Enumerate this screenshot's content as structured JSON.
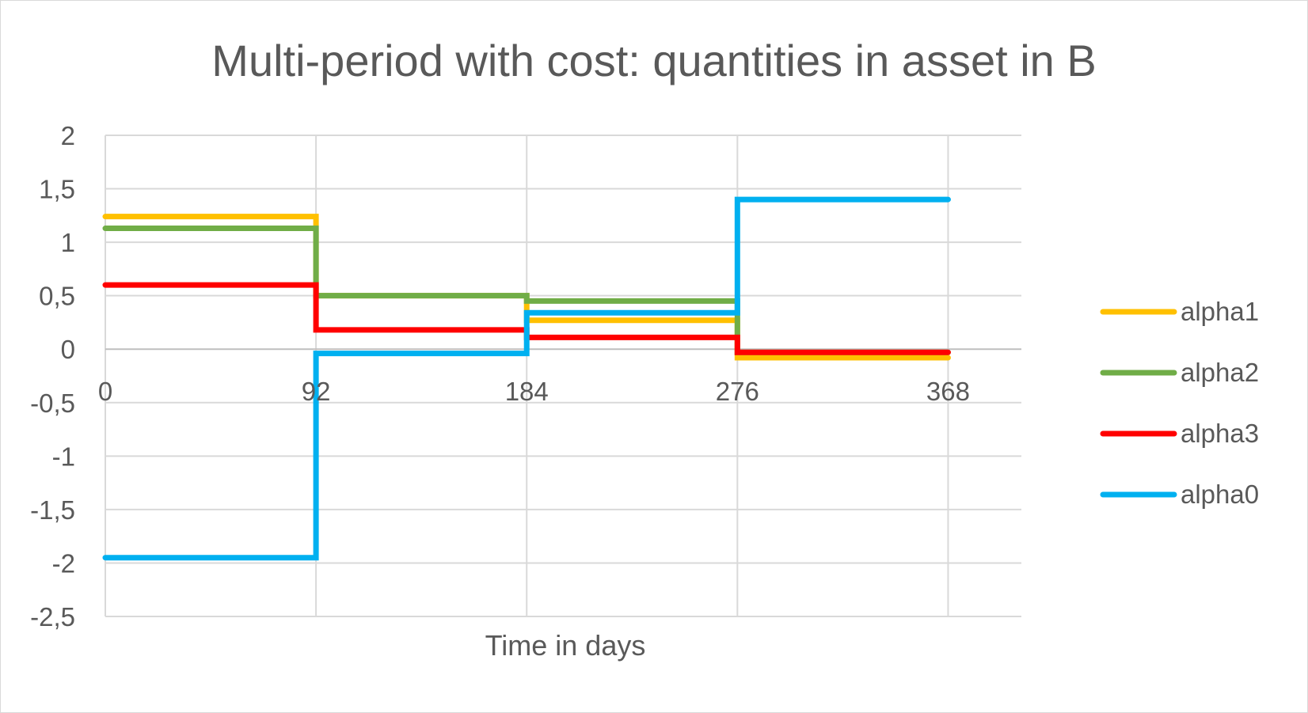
{
  "chart_data": {
    "type": "line",
    "step": "post",
    "title": "Multi-period with cost: quantities in asset in B",
    "xlabel": "Time in days",
    "ylabel": "",
    "x": [
      0,
      92,
      184,
      276,
      368
    ],
    "xlim": [
      0,
      400
    ],
    "ylim": [
      -2.5,
      2
    ],
    "x_ticks": [
      0,
      92,
      184,
      276,
      368
    ],
    "x_tick_labels": [
      "0",
      "92",
      "184",
      "276",
      "368"
    ],
    "y_ticks": [
      -2.5,
      -2,
      -1.5,
      -1,
      -0.5,
      0,
      0.5,
      1,
      1.5,
      2
    ],
    "y_tick_labels": [
      "-2,5",
      "-2",
      "-1,5",
      "-1",
      "-0,5",
      "0",
      "0,5",
      "1",
      "1,5",
      "2"
    ],
    "grid": true,
    "legend_position": "right",
    "series": [
      {
        "name": "alpha1",
        "color": "#FFC000",
        "values": [
          1.24,
          0.5,
          0.27,
          -0.08,
          -0.08
        ]
      },
      {
        "name": "alpha2",
        "color": "#70AD47",
        "values": [
          1.13,
          0.5,
          0.45,
          -0.03,
          -0.03
        ]
      },
      {
        "name": "alpha3",
        "color": "#FF0000",
        "values": [
          0.6,
          0.18,
          0.11,
          -0.03,
          -0.03
        ]
      },
      {
        "name": "alpha0",
        "color": "#00B0F0",
        "values": [
          -1.95,
          -0.04,
          0.34,
          1.4,
          1.4
        ]
      }
    ]
  }
}
